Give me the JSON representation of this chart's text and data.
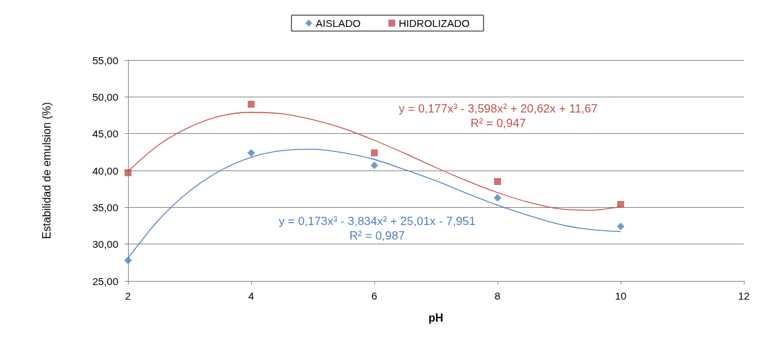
{
  "chart_data": {
    "type": "scatter",
    "xlabel": "pH",
    "ylabel": "Estabilidad de emulsion (%)",
    "xlim": [
      2,
      12
    ],
    "xticks": [
      2,
      4,
      6,
      8,
      10,
      12
    ],
    "ylim": [
      25,
      55
    ],
    "yticks": [
      {
        "value": 25,
        "label": "25,00"
      },
      {
        "value": 30,
        "label": "30,00"
      },
      {
        "value": 35,
        "label": "35,00"
      },
      {
        "value": 40,
        "label": "40,00"
      },
      {
        "value": 45,
        "label": "45,00"
      },
      {
        "value": 50,
        "label": "50,00"
      },
      {
        "value": 55,
        "label": "55,00"
      }
    ],
    "grid": "y",
    "legend": "top",
    "series": [
      {
        "name": "AISLADO",
        "color": "#4f81bd",
        "marker": "diamond",
        "x": [
          2,
          4,
          6,
          8,
          10
        ],
        "values": [
          27.8,
          42.4,
          40.7,
          36.3,
          32.4
        ]
      },
      {
        "name": "HIDROLIZADO",
        "color": "#c0504d",
        "marker": "square",
        "x": [
          2,
          4,
          6,
          8,
          10
        ],
        "values": [
          39.7,
          49.0,
          42.4,
          38.5,
          35.4
        ]
      },
      {
        "type": "line",
        "color": "#4f81bd",
        "marker": "none",
        "x": [
          2,
          2.5,
          3,
          3.5,
          4,
          4.5,
          5,
          5.5,
          6,
          6.5,
          7,
          7.5,
          8,
          8.5,
          9,
          9.5,
          10
        ],
        "values": [
          28.1,
          33.3,
          37.2,
          40.0,
          41.8,
          42.7,
          42.9,
          42.4,
          41.5,
          40.1,
          38.6,
          36.9,
          35.3,
          33.9,
          32.7,
          32.0,
          31.7
        ]
      },
      {
        "type": "line",
        "color": "#c0504d",
        "marker": "none",
        "x": [
          2,
          2.5,
          3,
          3.5,
          4,
          4.5,
          5,
          5.5,
          6,
          6.5,
          7,
          7.5,
          8,
          8.5,
          9,
          9.5,
          10
        ],
        "values": [
          39.9,
          43.5,
          45.9,
          47.4,
          47.9,
          47.7,
          46.9,
          45.7,
          44.1,
          42.3,
          40.4,
          38.6,
          37.0,
          35.7,
          34.8,
          34.6,
          35.1
        ]
      }
    ],
    "annotations": [
      "y = 0,177x³ - 3,598x² + 20,62x + 11,67",
      "R² = 0,947",
      "y = 0,173x³ - 3,834x² + 25,01x - 7,951",
      "R² = 0,987"
    ]
  }
}
